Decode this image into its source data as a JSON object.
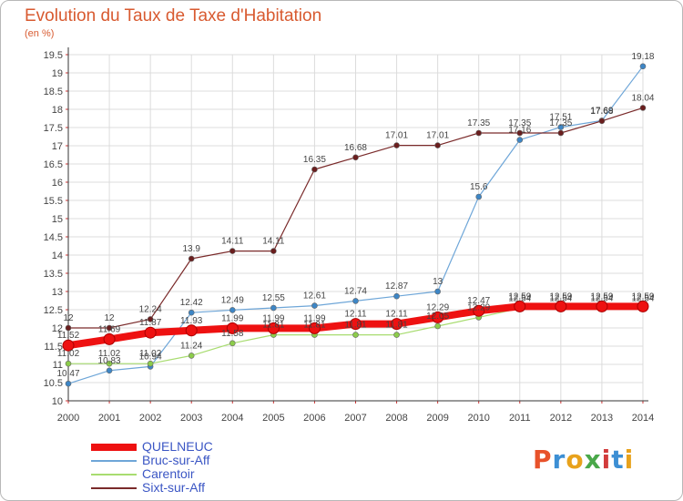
{
  "header": {
    "title": "Evolution du Taux de Taxe d'Habitation",
    "subtitle": "(en %)"
  },
  "brand": {
    "text": "Proxiti",
    "letter_colors": [
      "#e8522a",
      "#3d8fd4",
      "#e8a21c",
      "#4aa84a",
      "#d23c3c",
      "#3d8fd4",
      "#e8a21c"
    ]
  },
  "chart_data": {
    "type": "line",
    "title": "Evolution du Taux de Taxe d'Habitation",
    "subtitle": "(en %)",
    "x": [
      2000,
      2001,
      2002,
      2003,
      2004,
      2005,
      2006,
      2007,
      2008,
      2009,
      2010,
      2011,
      2012,
      2013,
      2014
    ],
    "ylim": [
      10,
      19.5
    ],
    "yticks": [
      10,
      10.5,
      11,
      11.5,
      12,
      12.5,
      13,
      13.5,
      14,
      14.5,
      15,
      15.5,
      16,
      16.5,
      17,
      17.5,
      18,
      18.5,
      19,
      19.5
    ],
    "grid": true,
    "legend_position": "bottom-left",
    "series": [
      {
        "name": "QUELNEUC",
        "color": "#ee1111",
        "marker_color": "#ee1111",
        "stroke_width": 8,
        "marker_radius": 6,
        "values": [
          11.52,
          11.69,
          11.87,
          11.93,
          11.99,
          11.99,
          11.99,
          12.11,
          12.11,
          12.29,
          12.47,
          12.59,
          12.59,
          12.59,
          12.59
        ],
        "labels": [
          "11.52",
          "11.69",
          "11.87",
          "11.93",
          "11.99",
          "11.99",
          "11.99",
          "12.11",
          "12.11",
          "12.29",
          "12.47",
          "12.59",
          "12.59",
          "12.59",
          "12.59"
        ]
      },
      {
        "name": "Bruc-sur-Aff",
        "color": "#6ea6d8",
        "marker_color": "#3d86c6",
        "stroke_width": 1.2,
        "marker_radius": 3,
        "values": [
          10.47,
          10.83,
          10.94,
          12.42,
          12.49,
          12.55,
          12.61,
          12.74,
          12.87,
          13,
          15.6,
          17.16,
          17.51,
          17.69,
          19.18
        ],
        "labels": [
          "10.47",
          "10.83",
          "10.94",
          "12.42",
          "12.49",
          "12.55",
          "12.61",
          "12.74",
          "12.87",
          "13",
          "15.6",
          "17.16",
          "17.51",
          "17.69",
          "19.18"
        ]
      },
      {
        "name": "Carentoir",
        "color": "#a8dc70",
        "marker_color": "#8ccc4a",
        "stroke_width": 1.2,
        "marker_radius": 3,
        "values": [
          11.02,
          11.02,
          11.02,
          11.24,
          11.58,
          11.81,
          11.81,
          11.81,
          11.81,
          12.05,
          12.29,
          12.54,
          12.54,
          12.54,
          12.54
        ],
        "labels": [
          "11.02",
          "11.02",
          "11.02",
          "11.24",
          "11.58",
          "11.81",
          "11.81",
          "11.81",
          "11.81",
          "12.05",
          "12.29",
          "12.54",
          "12.54",
          "12.54",
          "12.54"
        ]
      },
      {
        "name": "Sixt-sur-Aff",
        "color": "#7a2a2a",
        "marker_color": "#6a1e1e",
        "stroke_width": 1.2,
        "marker_radius": 3,
        "values": [
          12,
          12,
          12.24,
          13.9,
          14.11,
          14.11,
          16.35,
          16.68,
          17.01,
          17.01,
          17.35,
          17.35,
          17.35,
          17.68,
          18.04
        ],
        "labels": [
          "12",
          "12",
          "12.24",
          "13.9",
          "14.11",
          "14.11",
          "16.35",
          "16.68",
          "17.01",
          "17.01",
          "17.35",
          "17.35",
          "17.35",
          "17.68",
          "18.04"
        ]
      }
    ]
  }
}
